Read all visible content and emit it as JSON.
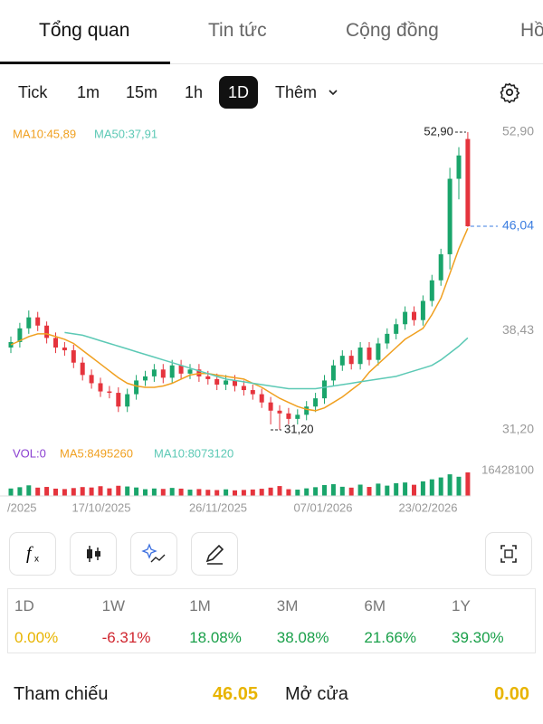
{
  "tabs": [
    "Tổng quan",
    "Tin tức",
    "Cộng đồng",
    "Hồ"
  ],
  "intervals": [
    "Tick",
    "1m",
    "15m",
    "1h",
    "1D",
    "Thêm"
  ],
  "chart": {
    "type": "candlestick",
    "legend": [
      "MA10:45,89",
      "MA50:37,91"
    ],
    "ylim": [
      31.2,
      52.9
    ],
    "yticks": [
      {
        "value": 52.9,
        "label": "52,90"
      },
      {
        "value": 38.43,
        "label": "38,43"
      },
      {
        "value": 31.2,
        "label": "31,20"
      }
    ],
    "last_price": {
      "value": 46.04,
      "label": "46,04"
    },
    "high_label": "52,90",
    "low_label": "31,20",
    "up_color": "#1aa56b",
    "down_color": "#e5343d",
    "open": [
      37.2,
      37.6,
      38.6,
      39.4,
      38.8,
      37.9,
      37.2,
      37.0,
      36.1,
      35.2,
      34.6,
      34.0,
      33.9,
      32.9,
      33.8,
      34.8,
      35.1,
      35.6,
      35.0,
      35.9,
      35.3,
      35.6,
      35.1,
      34.9,
      34.5,
      34.8,
      34.4,
      34.1,
      33.8,
      33.2,
      32.6,
      32.4,
      32.0,
      32.3,
      32.9,
      33.5,
      34.8,
      35.9,
      36.6,
      36.0,
      37.2,
      36.3,
      37.5,
      38.2,
      38.9,
      39.8,
      39.2,
      40.6,
      42.1,
      44.0,
      49.5,
      52.4
    ],
    "high": [
      38.0,
      39.0,
      39.9,
      39.8,
      39.1,
      38.3,
      37.6,
      37.4,
      36.5,
      35.6,
      35.0,
      34.4,
      34.3,
      34.2,
      35.2,
      35.5,
      36.0,
      36.0,
      36.3,
      36.3,
      36.0,
      36.0,
      35.5,
      35.3,
      35.2,
      35.2,
      34.8,
      34.5,
      34.2,
      33.6,
      33.0,
      32.8,
      32.7,
      33.3,
      33.9,
      35.2,
      36.3,
      37.0,
      37.0,
      37.6,
      37.6,
      37.9,
      38.6,
      39.3,
      40.2,
      40.2,
      41.0,
      42.5,
      44.4,
      50.3,
      51.8,
      52.9
    ],
    "low": [
      36.8,
      37.2,
      38.2,
      38.4,
      37.5,
      36.8,
      36.6,
      35.7,
      34.8,
      34.2,
      33.6,
      33.5,
      32.5,
      32.5,
      33.4,
      34.4,
      34.7,
      34.6,
      34.6,
      34.9,
      34.9,
      34.7,
      34.5,
      34.1,
      34.1,
      34.0,
      33.7,
      33.4,
      32.8,
      31.6,
      31.2,
      31.6,
      31.6,
      31.9,
      32.5,
      33.1,
      34.4,
      35.5,
      35.6,
      35.6,
      35.9,
      35.9,
      37.1,
      37.8,
      38.5,
      38.8,
      38.8,
      40.2,
      41.7,
      42.9,
      48.0,
      46.0
    ],
    "close": [
      37.6,
      38.6,
      39.4,
      38.8,
      37.9,
      37.2,
      37.0,
      36.1,
      35.2,
      34.6,
      34.0,
      33.9,
      32.9,
      33.8,
      34.8,
      35.1,
      35.6,
      35.0,
      35.9,
      35.3,
      35.6,
      35.1,
      34.9,
      34.5,
      34.8,
      34.4,
      34.1,
      33.8,
      33.2,
      32.6,
      32.4,
      32.0,
      32.3,
      32.9,
      33.5,
      34.8,
      35.9,
      36.6,
      36.0,
      37.2,
      36.3,
      37.5,
      38.2,
      38.9,
      39.8,
      39.2,
      40.6,
      42.1,
      44.0,
      49.5,
      51.2,
      46.04
    ],
    "ma": [
      {
        "name": "MA10",
        "color": "#f0a020",
        "values": [
          37.4,
          37.7,
          38.0,
          38.2,
          38.2,
          38.0,
          37.8,
          37.5,
          37.0,
          36.5,
          36.0,
          35.5,
          35.0,
          34.6,
          34.4,
          34.3,
          34.3,
          34.4,
          34.6,
          34.9,
          35.2,
          35.3,
          35.3,
          35.2,
          35.1,
          35.0,
          34.9,
          34.6,
          34.3,
          33.9,
          33.5,
          33.2,
          32.9,
          32.7,
          32.6,
          32.8,
          33.2,
          33.6,
          34.1,
          34.6,
          35.4,
          36.0,
          36.6,
          37.2,
          37.8,
          38.2,
          38.6,
          39.6,
          40.8,
          42.6,
          44.4,
          45.89
        ]
      },
      {
        "name": "MA50",
        "color": "#5cc9b5",
        "values": [
          null,
          null,
          null,
          null,
          null,
          null,
          38.3,
          38.2,
          38.1,
          37.9,
          37.7,
          37.5,
          37.3,
          37.1,
          36.9,
          36.7,
          36.5,
          36.3,
          36.1,
          35.9,
          35.7,
          35.5,
          35.3,
          35.1,
          34.9,
          34.8,
          34.7,
          34.6,
          34.5,
          34.4,
          34.3,
          34.2,
          34.2,
          34.2,
          34.2,
          34.3,
          34.4,
          34.5,
          34.6,
          34.7,
          34.8,
          34.9,
          35.0,
          35.1,
          35.3,
          35.5,
          35.7,
          35.9,
          36.3,
          36.8,
          37.3,
          37.91
        ]
      }
    ],
    "volume": {
      "legend": [
        "VOL:0",
        "MA5:8495260",
        "MA10:8073120"
      ],
      "ylim": [
        0,
        16428100
      ],
      "yticks": [
        16428100
      ],
      "values": [
        5200000,
        6100000,
        7400000,
        5800000,
        6300000,
        5100000,
        4800000,
        5500000,
        6200000,
        5900000,
        6800000,
        5300000,
        7100000,
        6600000,
        5900000,
        4700000,
        5200000,
        4900000,
        5600000,
        5100000,
        4400000,
        4800000,
        4300000,
        4100000,
        4600000,
        3900000,
        4200000,
        4500000,
        5000000,
        5800000,
        6900000,
        4700000,
        4400000,
        5300000,
        6100000,
        7600000,
        8200000,
        6400000,
        5800000,
        7900000,
        6300000,
        8600000,
        7200000,
        8900000,
        9400000,
        7800000,
        10200000,
        11600000,
        12900000,
        15100000,
        13400000,
        16428100
      ]
    },
    "x_labels": [
      "/2025",
      "17/10/2025",
      "26/11/2025",
      "07/01/2026",
      "23/02/2026"
    ]
  },
  "performance": {
    "periods": [
      "1D",
      "1W",
      "1M",
      "3M",
      "6M",
      "1Y"
    ],
    "changes": [
      "0.00%",
      "-6.31%",
      "18.08%",
      "38.08%",
      "21.66%",
      "39.30%"
    ]
  },
  "quote": [
    {
      "label": "Tham chiếu",
      "value": "46.05"
    },
    {
      "label": "Mở cửa",
      "value": "0.00"
    }
  ]
}
